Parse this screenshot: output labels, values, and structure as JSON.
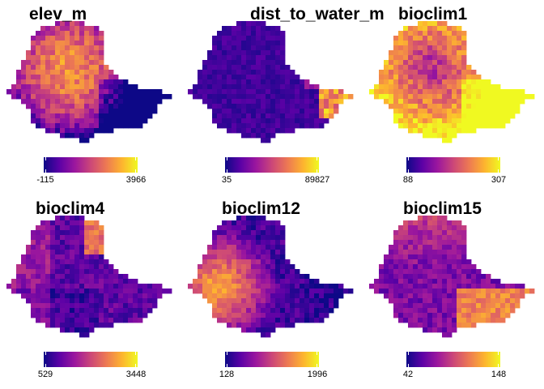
{
  "colormap": [
    "#0d0887",
    "#5c01a6",
    "#9c179e",
    "#cc4778",
    "#ed7953",
    "#fdb42f",
    "#f0f921"
  ],
  "panels": [
    {
      "title": "elev_m",
      "min": "-115",
      "max": "3966",
      "pattern": "elev"
    },
    {
      "title": "dist_to_water_m",
      "min": "35",
      "max": "89827",
      "pattern": "dist"
    },
    {
      "title": "bioclim1",
      "min": "88",
      "max": "307",
      "pattern": "bio1"
    },
    {
      "title": "bioclim4",
      "min": "529",
      "max": "3448",
      "pattern": "bio4"
    },
    {
      "title": "bioclim12",
      "min": "128",
      "max": "1996",
      "pattern": "bio12"
    },
    {
      "title": "bioclim15",
      "min": "42",
      "max": "148",
      "pattern": "bio15"
    }
  ]
}
